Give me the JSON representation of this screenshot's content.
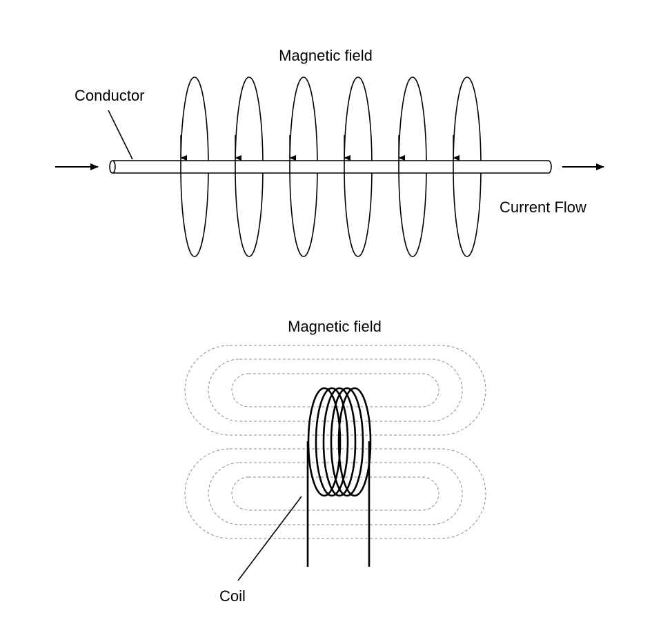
{
  "straight_conductor": {
    "title": "Magnetic field",
    "conductor_label": "Conductor",
    "current_label": "Current Flow",
    "field_loop_count": 6
  },
  "coil_section": {
    "title": "Magnetic field",
    "coil_label": "Coil",
    "coil_turn_count": 5
  }
}
